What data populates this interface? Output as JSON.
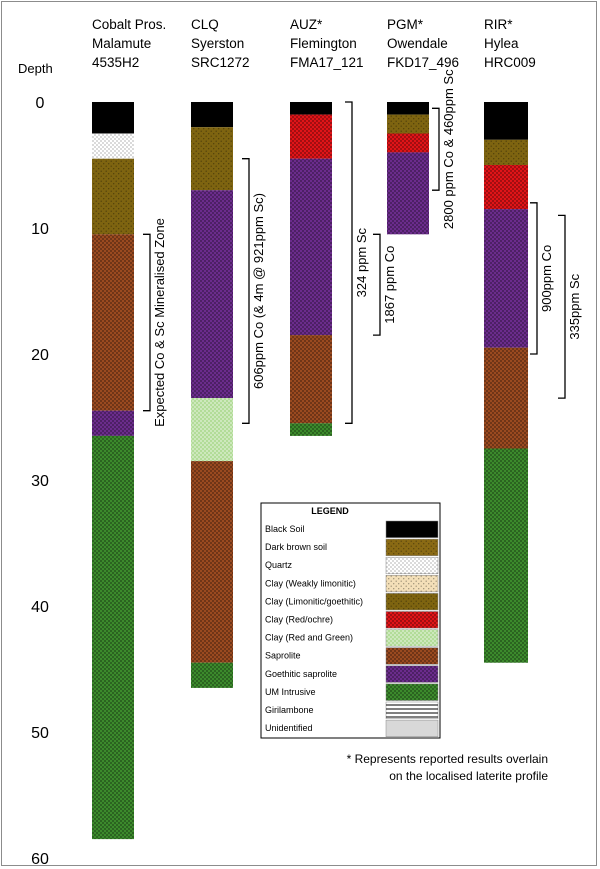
{
  "axis": {
    "label": "Depth",
    "ticks": [
      0,
      10,
      20,
      30,
      40,
      50,
      60
    ]
  },
  "lithology_colors": {
    "black_soil": "#000000",
    "dark_brown_soil": "#8a6a14",
    "quartz": "#ffffff",
    "clay_weakly_limonitic": "#f3dfb8",
    "clay_limonitic_goethitic": "#7e6410",
    "clay_red_ochre": "#e01418",
    "clay_red_green": "#b2dc98",
    "saprolite": "#9a4a20",
    "goethitic_saprolite": "#6b2c8c",
    "um_intrusive": "#3c8a2c",
    "girilambone": "#ffffff",
    "unidentified": "#d8d8d8"
  },
  "holes": [
    {
      "title": [
        "Cobalt Pros.",
        "Malamute",
        "4535H2"
      ],
      "intervals": [
        {
          "from": 0,
          "to": 2.5,
          "lith": "black_soil"
        },
        {
          "from": 2.5,
          "to": 4.5,
          "lith": "quartz"
        },
        {
          "from": 4.5,
          "to": 10.5,
          "lith": "clay_limonitic_goethitic"
        },
        {
          "from": 10.5,
          "to": 24.5,
          "lith": "saprolite"
        },
        {
          "from": 24.5,
          "to": 26.5,
          "lith": "goethitic_saprolite"
        },
        {
          "from": 26.5,
          "to": 58.5,
          "lith": "um_intrusive"
        }
      ],
      "brackets": [
        {
          "from": 10.5,
          "to": 24.5,
          "label": "Expected Co & Sc Mineralised Zone"
        }
      ]
    },
    {
      "title": [
        "CLQ",
        "Syerston",
        "SRC1272"
      ],
      "intervals": [
        {
          "from": 0,
          "to": 2,
          "lith": "black_soil"
        },
        {
          "from": 2,
          "to": 7,
          "lith": "clay_limonitic_goethitic"
        },
        {
          "from": 7,
          "to": 23.5,
          "lith": "goethitic_saprolite"
        },
        {
          "from": 23.5,
          "to": 28.5,
          "lith": "clay_red_green"
        },
        {
          "from": 28.5,
          "to": 44.5,
          "lith": "saprolite"
        },
        {
          "from": 44.5,
          "to": 46.5,
          "lith": "um_intrusive"
        }
      ],
      "brackets": [
        {
          "from": 4.5,
          "to": 25.5,
          "label": "606ppm Co (& 4m @ 921ppm Sc)"
        }
      ]
    },
    {
      "title": [
        "AUZ*",
        "Flemington",
        "FMA17_121"
      ],
      "intervals": [
        {
          "from": 0,
          "to": 1,
          "lith": "black_soil"
        },
        {
          "from": 1,
          "to": 4.5,
          "lith": "clay_red_ochre"
        },
        {
          "from": 4.5,
          "to": 18.5,
          "lith": "goethitic_saprolite"
        },
        {
          "from": 18.5,
          "to": 25.5,
          "lith": "saprolite"
        },
        {
          "from": 25.5,
          "to": 26.5,
          "lith": "um_intrusive"
        }
      ],
      "brackets": [
        {
          "from": 0,
          "to": 25.5,
          "label": "324 ppm Sc"
        },
        {
          "from": 10.5,
          "to": 18.5,
          "label": "1867 ppm Co"
        }
      ]
    },
    {
      "title": [
        "PGM*",
        "Owendale",
        "FKD17_496"
      ],
      "intervals": [
        {
          "from": 0,
          "to": 1,
          "lith": "black_soil"
        },
        {
          "from": 1,
          "to": 2.5,
          "lith": "clay_limonitic_goethitic"
        },
        {
          "from": 2.5,
          "to": 4,
          "lith": "clay_red_ochre"
        },
        {
          "from": 4,
          "to": 10.5,
          "lith": "goethitic_saprolite"
        }
      ],
      "brackets": [
        {
          "from": 0.5,
          "to": 7,
          "label": "2800 ppm Co & 460ppm Sc"
        }
      ]
    },
    {
      "title": [
        "RIR*",
        "Hylea",
        "HRC009"
      ],
      "intervals": [
        {
          "from": 0,
          "to": 3,
          "lith": "black_soil"
        },
        {
          "from": 3,
          "to": 5,
          "lith": "clay_limonitic_goethitic"
        },
        {
          "from": 5,
          "to": 8.5,
          "lith": "clay_red_ochre"
        },
        {
          "from": 8.5,
          "to": 19.5,
          "lith": "goethitic_saprolite"
        },
        {
          "from": 19.5,
          "to": 27.5,
          "lith": "saprolite"
        },
        {
          "from": 27.5,
          "to": 44.5,
          "lith": "um_intrusive"
        }
      ],
      "brackets": [
        {
          "from": 8,
          "to": 20,
          "label": "900ppm Co"
        },
        {
          "from": 9,
          "to": 23.5,
          "label": "335ppm Sc"
        }
      ]
    }
  ],
  "legend": {
    "title": "LEGEND",
    "items": [
      {
        "label": "Black Soil",
        "lith": "black_soil"
      },
      {
        "label": "Dark brown soil",
        "lith": "dark_brown_soil"
      },
      {
        "label": "Quartz",
        "lith": "quartz"
      },
      {
        "label": "Clay (Weakly limonitic)",
        "lith": "clay_weakly_limonitic"
      },
      {
        "label": "Clay (Limonitic/goethitic)",
        "lith": "clay_limonitic_goethitic"
      },
      {
        "label": "Clay (Red/ochre)",
        "lith": "clay_red_ochre"
      },
      {
        "label": "Clay (Red and Green)",
        "lith": "clay_red_green"
      },
      {
        "label": "Saprolite",
        "lith": "saprolite"
      },
      {
        "label": "Goethitic saprolite",
        "lith": "goethitic_saprolite"
      },
      {
        "label": "UM Intrusive",
        "lith": "um_intrusive"
      },
      {
        "label": "Girilambone",
        "lith": "girilambone"
      },
      {
        "label": "Unidentified",
        "lith": "unidentified"
      }
    ]
  },
  "footnote": [
    "* Represents reported results overlain",
    "on the localised laterite profile"
  ]
}
